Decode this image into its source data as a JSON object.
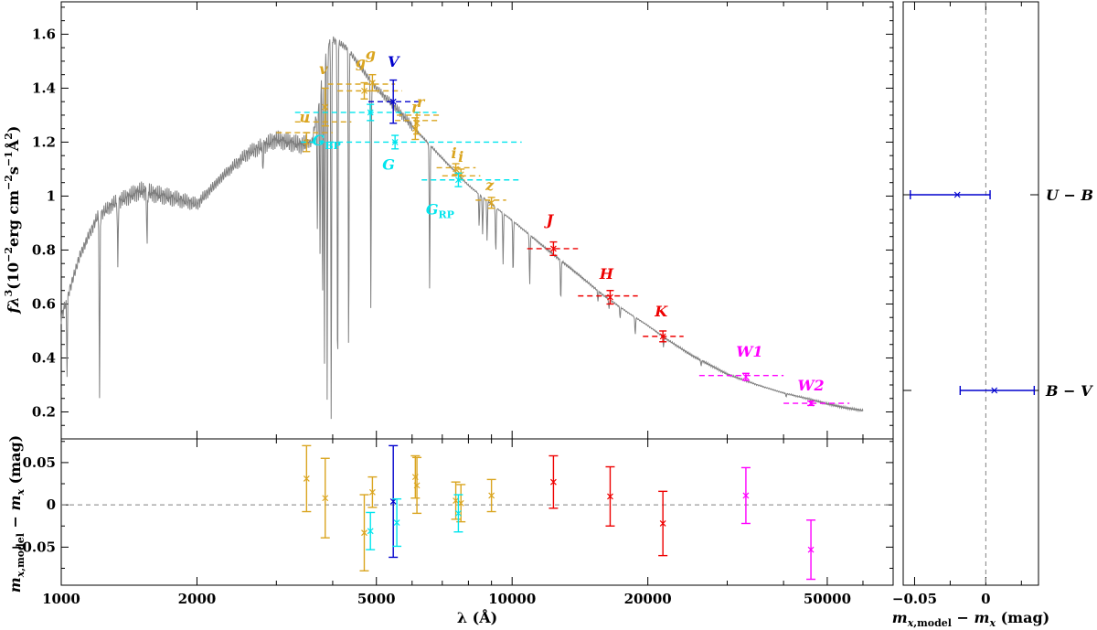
{
  "chart_data": [
    {
      "type": "line",
      "panel": "sed",
      "x_scale": "log",
      "xlim": [
        1000,
        70000
      ],
      "ylim": [
        0.1,
        1.72
      ],
      "ylabel_main": "fλ",
      "ylabel_tail": "(10",
      "ylabel_tail2": "erg cm",
      "ylabel_tail3": "s",
      "ylabel_tail4": "Å",
      "yticks": [
        0.2,
        0.4,
        0.6,
        0.8,
        1,
        1.2,
        1.4,
        1.6
      ],
      "ytick_labels": [
        "0.2",
        "0.4",
        "0.6",
        "0.8",
        "1",
        "1.2",
        "1.4",
        "1.6"
      ],
      "model_continuum": {
        "x": [
          1000,
          1100,
          1200,
          1300,
          1500,
          1700,
          2000,
          2300,
          2600,
          3000,
          3200,
          3400,
          3600,
          3700,
          3800,
          3900,
          4000,
          4300,
          4600,
          5000,
          5500,
          6000,
          7000,
          8000,
          9000,
          10000,
          12000,
          14000,
          16000,
          18000,
          20000,
          22000,
          25000,
          30000,
          35000,
          40000,
          45000,
          50000,
          55000,
          60000
        ],
        "y": [
          0.55,
          0.78,
          0.92,
          0.97,
          1.02,
          1.0,
          0.97,
          1.08,
          1.16,
          1.21,
          1.2,
          1.19,
          1.2,
          1.32,
          1.48,
          1.56,
          1.58,
          1.55,
          1.48,
          1.4,
          1.33,
          1.26,
          1.14,
          1.04,
          0.97,
          0.91,
          0.8,
          0.71,
          0.63,
          0.57,
          0.52,
          0.47,
          0.41,
          0.34,
          0.3,
          0.27,
          0.25,
          0.23,
          0.215,
          0.205
        ]
      },
      "model_absorption_lines": [
        {
          "x": 1030,
          "depth": 0.45
        },
        {
          "x": 1216,
          "depth": 0.75
        },
        {
          "x": 1335,
          "depth": 0.25
        },
        {
          "x": 1550,
          "depth": 0.2
        },
        {
          "x": 2800,
          "depth": 0.08
        },
        {
          "x": 3700,
          "depth": 0.35
        },
        {
          "x": 3750,
          "depth": 0.45
        },
        {
          "x": 3798,
          "depth": 0.6
        },
        {
          "x": 3835,
          "depth": 0.75
        },
        {
          "x": 3889,
          "depth": 0.85
        },
        {
          "x": 3970,
          "depth": 0.9
        },
        {
          "x": 4102,
          "depth": 0.85
        },
        {
          "x": 4340,
          "depth": 0.75
        },
        {
          "x": 4861,
          "depth": 0.6
        },
        {
          "x": 6563,
          "depth": 0.45
        },
        {
          "x": 8450,
          "depth": 0.12
        },
        {
          "x": 8600,
          "depth": 0.14
        },
        {
          "x": 8800,
          "depth": 0.15
        },
        {
          "x": 9200,
          "depth": 0.18
        },
        {
          "x": 9550,
          "depth": 0.2
        },
        {
          "x": 10050,
          "depth": 0.22
        },
        {
          "x": 10940,
          "depth": 0.22
        },
        {
          "x": 12820,
          "depth": 0.2
        },
        {
          "x": 15500,
          "depth": 0.06
        },
        {
          "x": 16400,
          "depth": 0.06
        },
        {
          "x": 17360,
          "depth": 0.07
        },
        {
          "x": 18750,
          "depth": 0.12
        },
        {
          "x": 21660,
          "depth": 0.08
        },
        {
          "x": 26250,
          "depth": 0.05
        },
        {
          "x": 40520,
          "depth": 0.04
        }
      ],
      "photometry": [
        {
          "band": "u",
          "label": "u",
          "x": 3500,
          "x_lo": 3000,
          "x_hi": 4000,
          "y": 1.2,
          "y_err": 0.035,
          "model": 1.235,
          "color": "#DAA520"
        },
        {
          "band": "v",
          "label": "v",
          "x": 3850,
          "x_lo": 3300,
          "x_hi": 4400,
          "y": 1.33,
          "y_err": 0.07,
          "model": 1.275,
          "color": "#DAA520"
        },
        {
          "band": "g_sm",
          "label": "g",
          "x": 4700,
          "x_lo": 3900,
          "x_hi": 5500,
          "y": 1.39,
          "y_err": 0.03,
          "model": 1.415,
          "color": "#DAA520"
        },
        {
          "band": "g_ps",
          "label": "g",
          "x": 4900,
          "x_lo": 4100,
          "x_hi": 5700,
          "y": 1.42,
          "y_err": 0.03,
          "model": 1.39,
          "color": "#DAA520"
        },
        {
          "band": "r_sm",
          "label": "r",
          "x": 6100,
          "x_lo": 5500,
          "x_hi": 6900,
          "y": 1.25,
          "y_err": 0.04,
          "model": 1.28,
          "color": "#DAA520"
        },
        {
          "band": "r_ps",
          "label": "r",
          "x": 6150,
          "x_lo": 5550,
          "x_hi": 6950,
          "y": 1.27,
          "y_err": 0.04,
          "model": 1.3,
          "color": "#DAA520"
        },
        {
          "band": "i_sm",
          "label": "i",
          "x": 7500,
          "x_lo": 6800,
          "x_hi": 8300,
          "y": 1.1,
          "y_err": 0.02,
          "model": 1.105,
          "color": "#DAA520"
        },
        {
          "band": "i_ps",
          "label": "i",
          "x": 7700,
          "x_lo": 7000,
          "x_hi": 8500,
          "y": 1.08,
          "y_err": 0.02,
          "model": 1.075,
          "color": "#DAA520"
        },
        {
          "band": "z",
          "label": "z",
          "x": 9000,
          "x_lo": 8300,
          "x_hi": 9700,
          "y": 0.975,
          "y_err": 0.02,
          "model": 0.985,
          "color": "#DAA520"
        },
        {
          "band": "V",
          "label": "V",
          "x": 5450,
          "x_lo": 4800,
          "x_hi": 6200,
          "y": 1.35,
          "y_err": 0.08,
          "model": 1.35,
          "color": "#0000CD"
        },
        {
          "band": "G_BP",
          "label": "G",
          "sub": "BP",
          "x": 4850,
          "x_lo": 3300,
          "x_hi": 6800,
          "y": 1.31,
          "y_err": 0.03,
          "model": 1.31,
          "color": "#00E5EE"
        },
        {
          "band": "G",
          "label": "G",
          "x": 5500,
          "x_lo": 3400,
          "x_hi": 10500,
          "y": 1.2,
          "y_err": 0.025,
          "model": 1.2,
          "color": "#00E5EE"
        },
        {
          "band": "G_RP",
          "label": "G",
          "sub": "RP",
          "x": 7600,
          "x_lo": 6300,
          "x_hi": 10500,
          "y": 1.06,
          "y_err": 0.025,
          "model": 1.06,
          "color": "#00E5EE"
        },
        {
          "band": "J",
          "label": "J",
          "x": 12350,
          "x_lo": 10800,
          "x_hi": 14000,
          "y": 0.805,
          "y_err": 0.025,
          "model": 0.805,
          "color": "#EE0000"
        },
        {
          "band": "H",
          "label": "H",
          "x": 16500,
          "x_lo": 14000,
          "x_hi": 19000,
          "y": 0.625,
          "y_err": 0.025,
          "model": 0.63,
          "color": "#EE0000"
        },
        {
          "band": "K",
          "label": "K",
          "x": 21600,
          "x_lo": 19500,
          "x_hi": 24000,
          "y": 0.48,
          "y_err": 0.02,
          "model": 0.48,
          "color": "#EE0000"
        },
        {
          "band": "W1",
          "label": "W1",
          "x": 33000,
          "x_lo": 26000,
          "x_hi": 40000,
          "y": 0.33,
          "y_err": 0.013,
          "model": 0.335,
          "color": "#FF00FF"
        },
        {
          "band": "W2",
          "label": "W2",
          "x": 46000,
          "x_lo": 40000,
          "x_hi": 56000,
          "y": 0.232,
          "y_err": 0.008,
          "model": 0.232,
          "color": "#FF00FF"
        }
      ]
    },
    {
      "type": "scatter",
      "panel": "residuals",
      "x_scale": "log",
      "xlim": [
        1000,
        70000
      ],
      "ylim": [
        -0.095,
        0.078
      ],
      "xlabel": "λ (Å)",
      "ylabel": "m",
      "xticks": [
        1000,
        2000,
        5000,
        10000,
        20000,
        50000
      ],
      "xtick_labels": [
        "1000",
        "2000",
        "5000",
        "10000",
        "20000",
        "50000"
      ],
      "yticks": [
        -0.05,
        0,
        0.05
      ],
      "ytick_labels": [
        "−0.05",
        "0",
        "0.05"
      ],
      "points": [
        {
          "x": 3500,
          "y": 0.031,
          "err": 0.039,
          "color": "#DAA520"
        },
        {
          "x": 3850,
          "y": 0.008,
          "err": 0.047,
          "color": "#DAA520"
        },
        {
          "x": 4700,
          "y": -0.033,
          "err": 0.045,
          "color": "#DAA520"
        },
        {
          "x": 4900,
          "y": 0.015,
          "err": 0.018,
          "color": "#DAA520"
        },
        {
          "x": 6100,
          "y": 0.033,
          "err": 0.025,
          "color": "#DAA520"
        },
        {
          "x": 6150,
          "y": 0.023,
          "err": 0.033,
          "color": "#DAA520"
        },
        {
          "x": 7500,
          "y": 0.005,
          "err": 0.022,
          "color": "#DAA520"
        },
        {
          "x": 7700,
          "y": 0.002,
          "err": 0.022,
          "color": "#DAA520"
        },
        {
          "x": 9000,
          "y": 0.011,
          "err": 0.019,
          "color": "#DAA520"
        },
        {
          "x": 5450,
          "y": 0.004,
          "err": 0.066,
          "color": "#0000CD"
        },
        {
          "x": 4850,
          "y": -0.031,
          "err": 0.022,
          "color": "#00E5EE"
        },
        {
          "x": 5550,
          "y": -0.021,
          "err": 0.028,
          "color": "#00E5EE"
        },
        {
          "x": 7600,
          "y": -0.01,
          "err": 0.022,
          "color": "#00E5EE"
        },
        {
          "x": 12350,
          "y": 0.027,
          "err": 0.031,
          "color": "#EE0000"
        },
        {
          "x": 16500,
          "y": 0.01,
          "err": 0.035,
          "color": "#EE0000"
        },
        {
          "x": 21600,
          "y": -0.022,
          "err": 0.038,
          "color": "#EE0000"
        },
        {
          "x": 33000,
          "y": 0.011,
          "err": 0.033,
          "color": "#FF00FF"
        },
        {
          "x": 46000,
          "y": -0.053,
          "err": 0.035,
          "color": "#FF00FF"
        }
      ]
    },
    {
      "type": "scatter",
      "panel": "colors",
      "xlim": [
        -0.058,
        0.037
      ],
      "xlabel": "m",
      "xticks": [
        -0.05,
        0
      ],
      "xtick_labels": [
        "−0.05",
        "0"
      ],
      "categories": [
        "U − B",
        "B − V"
      ],
      "points": [
        {
          "name": "U − B",
          "value": -0.02,
          "err_lo": 0.033,
          "err_hi": 0.023,
          "color": "#0000CD"
        },
        {
          "name": "B − V",
          "value": 0.006,
          "err_lo": 0.024,
          "err_hi": 0.028,
          "color": "#0000CD"
        }
      ]
    }
  ]
}
